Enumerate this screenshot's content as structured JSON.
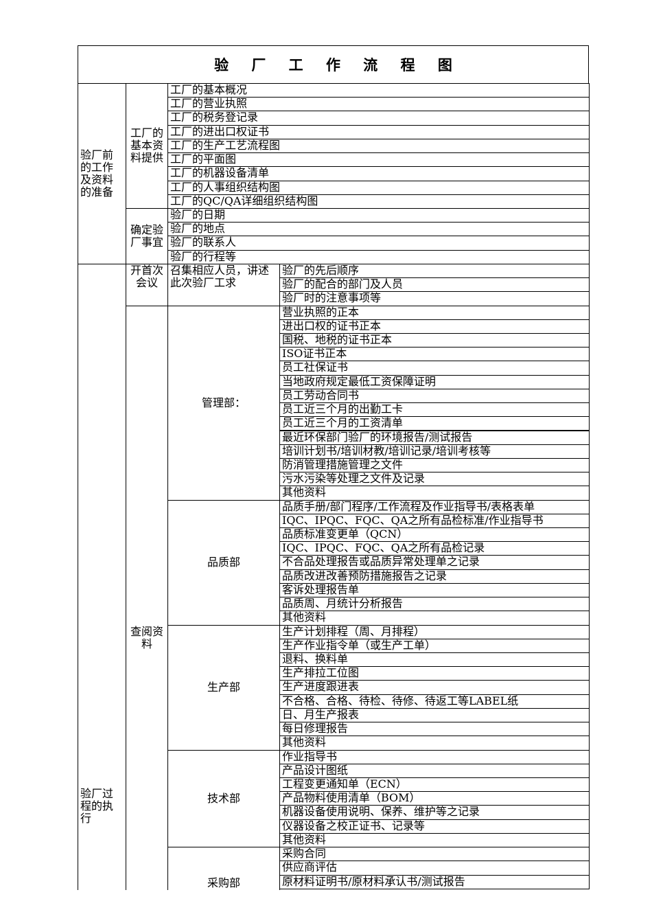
{
  "title": "验 厂 工 作 流 程 图",
  "sections": [
    {
      "label": "验厂前的工作及资料的准备",
      "groups": [
        {
          "label": "工厂的基本资料提供",
          "items": [
            "工厂的基本概况",
            "工厂的营业执照",
            "工厂的税务登记录",
            "工厂的进出口权证书",
            "工厂的生产工艺流程图",
            "工厂的平面图",
            "工厂的机器设备清单",
            "工厂的人事组织结构图",
            "工厂的QC/QA详细组织结构图"
          ]
        },
        {
          "label": "确定验厂事宜",
          "items": [
            "验厂的日期",
            "验厂的地点",
            "验厂的联系人",
            "验厂的行程等"
          ]
        }
      ]
    },
    {
      "label": "验厂过程的执行",
      "groups": [
        {
          "label": "开首次会议",
          "subs": [
            {
              "label": "召集相应人员，讲述此次验厂工求",
              "items": [
                "验厂的先后顺序",
                "验厂的配合的部门及人员",
                "验厂时的注意事项等"
              ]
            }
          ]
        },
        {
          "label": "查阅资料",
          "subs": [
            {
              "label": "管理部：",
              "items": [
                "营业执照的正本",
                "进出口权的证书正本",
                "国税、地税的证书正本",
                "ISO证书正本",
                "员工社保证书",
                "当地政府规定最低工资保障证明",
                "员工劳动合同书",
                "员工近三个月的出勤工卡",
                "员工近三个月的工资清单",
                "最近环保部门验厂的环境报告/测试报告",
                "培训计划书/培训材教/培训记录/培训考核等",
                "防消管理措施管理之文件",
                "污水污染等处理之文件及记录",
                "其他资料"
              ]
            },
            {
              "label": "品质部",
              "items": [
                "品质手册/部门程序/工作流程及作业指导书/表格表单",
                "IQC、IPQC、FQC、QA之所有品检标准/作业指导书",
                "品质标准变更单（QCN）",
                "IQC、IPQC、FQC、QA之所有品检记录",
                "不合品处理报告或品质异常处理单之记录",
                "品质改进改善预防措施报告之记录",
                "客诉处理报告单",
                "品质周、月统计分析报告",
                "其他资料"
              ]
            },
            {
              "label": "生产部",
              "items": [
                "生产计划排程（周、月排程）",
                "生产作业指令单（或生产工单）",
                "退料、换料单",
                "生产排拉工位图",
                "生产进度跟进表",
                "不合格、合格、待检、待修、待返工等LABEL纸",
                "日、月生产报表",
                "每日修理报告",
                "其他资料"
              ]
            },
            {
              "label": "技术部",
              "items": [
                "作业指导书",
                "产品设计图纸",
                "工程变更通知单（ECN）",
                "产品物料使用清单（BOM）",
                "机器设备使用说明、保养、维护等之记录",
                "仪器设备之校正证书、记录等",
                "其他资料"
              ]
            },
            {
              "label": "采购部",
              "items": [
                "采购合同",
                "供应商评估",
                "原材料证明书/原材料承认书/测试报告"
              ]
            }
          ]
        }
      ]
    }
  ]
}
